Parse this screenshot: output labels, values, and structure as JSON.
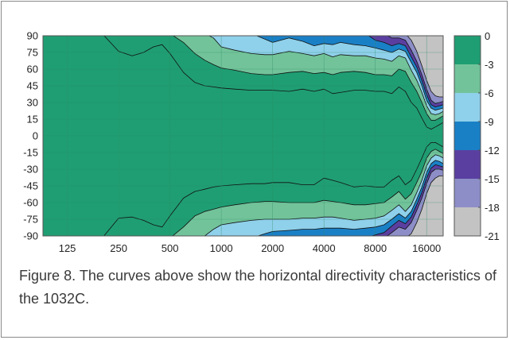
{
  "chart_data": {
    "type": "heatmap",
    "title": "",
    "xlabel": "",
    "ylabel": "",
    "x_scale": "log",
    "x_ticks": [
      "125",
      "250",
      "500",
      "1000",
      "2000",
      "4000",
      "8000",
      "16000"
    ],
    "xlim": [
      90,
      20000
    ],
    "y_ticks": [
      "90",
      "75",
      "60",
      "45",
      "30",
      "15",
      "0",
      "-15",
      "-30",
      "-45",
      "-60",
      "-75",
      "-90"
    ],
    "ylim": [
      -90,
      90
    ],
    "colorbar": {
      "ticks": [
        "0",
        "-3",
        "-6",
        "-9",
        "-12",
        "-15",
        "-18",
        "-21"
      ],
      "levels": [
        {
          "range": [
            -3,
            0
          ],
          "color": "#1f9e73"
        },
        {
          "range": [
            -6,
            -3
          ],
          "color": "#72c39a"
        },
        {
          "range": [
            -9,
            -6
          ],
          "color": "#8fd0ea"
        },
        {
          "range": [
            -12,
            -9
          ],
          "color": "#1a80c6"
        },
        {
          "range": [
            -15,
            -12
          ],
          "color": "#5b3fa0"
        },
        {
          "range": [
            -18,
            -15
          ],
          "color": "#8d8ec7"
        },
        {
          "range": [
            -21,
            -18
          ],
          "color": "#c3c3c3"
        }
      ]
    },
    "contours_upper_half": {
      "freq_hz": [
        90,
        100,
        125,
        160,
        200,
        250,
        300,
        350,
        400,
        450,
        500,
        600,
        700,
        800,
        900,
        1000,
        1200,
        1500,
        1800,
        2000,
        2500,
        3000,
        3500,
        4000,
        4500,
        5000,
        6000,
        7000,
        8000,
        9000,
        10000,
        11000,
        12000,
        13000,
        14000,
        15000,
        16000,
        17000,
        18000,
        19000,
        20000
      ],
      "levels_deg": [
        {
          "level": -3,
          "angle": [
            92,
            92,
            92,
            92,
            92,
            76,
            72,
            75,
            80,
            82,
            74,
            57,
            48,
            45,
            44,
            43,
            42,
            41,
            41,
            41,
            40,
            42,
            40,
            42,
            38,
            39,
            41,
            41,
            40,
            40,
            38,
            44,
            40,
            30,
            25,
            16,
            8,
            6,
            8,
            10,
            12
          ]
        },
        {
          "level": -6,
          "angle": [
            92,
            92,
            92,
            92,
            92,
            92,
            92,
            92,
            92,
            92,
            92,
            84,
            74,
            68,
            64,
            61,
            59,
            56,
            55,
            55,
            57,
            58,
            56,
            57,
            55,
            57,
            58,
            57,
            55,
            55,
            54,
            60,
            58,
            48,
            40,
            30,
            20,
            14,
            14,
            16,
            18
          ]
        },
        {
          "level": -9,
          "angle": [
            92,
            92,
            92,
            92,
            92,
            92,
            92,
            92,
            92,
            92,
            92,
            92,
            92,
            92,
            88,
            80,
            77,
            74,
            73,
            73,
            76,
            74,
            72,
            74,
            71,
            73,
            72,
            72,
            70,
            69,
            67,
            72,
            70,
            59,
            50,
            39,
            27,
            20,
            19,
            20,
            22
          ]
        },
        {
          "level": -12,
          "angle": [
            92,
            92,
            92,
            92,
            92,
            92,
            92,
            92,
            92,
            92,
            92,
            92,
            92,
            92,
            92,
            92,
            92,
            92,
            87,
            84,
            88,
            85,
            81,
            83,
            82,
            84,
            82,
            81,
            79,
            77,
            75,
            78,
            76,
            66,
            57,
            45,
            32,
            25,
            23,
            24,
            25
          ]
        },
        {
          "level": -15,
          "angle": [
            92,
            92,
            92,
            92,
            92,
            92,
            92,
            92,
            92,
            92,
            92,
            92,
            92,
            92,
            92,
            92,
            92,
            92,
            92,
            92,
            92,
            92,
            92,
            92,
            92,
            92,
            92,
            92,
            86,
            84,
            81,
            83,
            81,
            71,
            62,
            50,
            37,
            28,
            26,
            27,
            28
          ]
        },
        {
          "level": -18,
          "angle": [
            92,
            92,
            92,
            92,
            92,
            92,
            92,
            92,
            92,
            92,
            92,
            92,
            92,
            92,
            92,
            92,
            92,
            92,
            92,
            92,
            92,
            92,
            92,
            92,
            92,
            92,
            92,
            92,
            92,
            92,
            88,
            88,
            86,
            77,
            67,
            55,
            42,
            32,
            29,
            30,
            31
          ]
        },
        {
          "level": -21,
          "angle": [
            92,
            92,
            92,
            92,
            92,
            92,
            92,
            92,
            92,
            92,
            92,
            92,
            92,
            92,
            92,
            92,
            92,
            92,
            92,
            92,
            92,
            92,
            92,
            92,
            92,
            92,
            92,
            92,
            92,
            92,
            92,
            92,
            92,
            86,
            76,
            63,
            50,
            40,
            36,
            35,
            35
          ]
        }
      ]
    },
    "contours_lower_half": {
      "freq_hz": [
        90,
        100,
        125,
        160,
        200,
        250,
        300,
        350,
        400,
        450,
        500,
        600,
        700,
        800,
        900,
        1000,
        1200,
        1500,
        1800,
        2000,
        2500,
        3000,
        3500,
        4000,
        4500,
        5000,
        6000,
        7000,
        8000,
        9000,
        10000,
        11000,
        12000,
        13000,
        14000,
        15000,
        16000,
        17000,
        18000,
        19000,
        20000
      ],
      "levels_deg": [
        {
          "level": -3,
          "angle": [
            -92,
            -92,
            -92,
            -92,
            -92,
            -74,
            -73,
            -76,
            -80,
            -82,
            -72,
            -56,
            -50,
            -48,
            -46,
            -45,
            -44,
            -43,
            -43,
            -42,
            -42,
            -44,
            -44,
            -38,
            -40,
            -42,
            -46,
            -45,
            -46,
            -46,
            -40,
            -36,
            -44,
            -40,
            -30,
            -20,
            -10,
            -6,
            -6,
            -8,
            -10
          ]
        },
        {
          "level": -6,
          "angle": [
            -92,
            -92,
            -92,
            -92,
            -92,
            -92,
            -92,
            -92,
            -92,
            -92,
            -92,
            -82,
            -72,
            -68,
            -66,
            -64,
            -62,
            -60,
            -59,
            -59,
            -60,
            -60,
            -60,
            -58,
            -59,
            -60,
            -62,
            -62,
            -61,
            -60,
            -55,
            -50,
            -57,
            -52,
            -42,
            -32,
            -20,
            -14,
            -12,
            -14,
            -16
          ]
        },
        {
          "level": -9,
          "angle": [
            -92,
            -92,
            -92,
            -92,
            -92,
            -92,
            -92,
            -92,
            -92,
            -92,
            -92,
            -92,
            -92,
            -90,
            -84,
            -80,
            -78,
            -76,
            -75,
            -75,
            -75,
            -74,
            -74,
            -73,
            -73,
            -74,
            -76,
            -75,
            -74,
            -72,
            -67,
            -62,
            -68,
            -62,
            -51,
            -40,
            -27,
            -20,
            -17,
            -18,
            -20
          ]
        },
        {
          "level": -12,
          "angle": [
            -92,
            -92,
            -92,
            -92,
            -92,
            -92,
            -92,
            -92,
            -92,
            -92,
            -92,
            -92,
            -92,
            -92,
            -92,
            -92,
            -92,
            -92,
            -88,
            -86,
            -85,
            -84,
            -84,
            -83,
            -83,
            -83,
            -84,
            -83,
            -82,
            -80,
            -75,
            -70,
            -74,
            -68,
            -57,
            -46,
            -33,
            -25,
            -22,
            -23,
            -25
          ]
        },
        {
          "level": -15,
          "angle": [
            -92,
            -92,
            -92,
            -92,
            -92,
            -92,
            -92,
            -92,
            -92,
            -92,
            -92,
            -92,
            -92,
            -92,
            -92,
            -92,
            -92,
            -92,
            -92,
            -92,
            -92,
            -92,
            -92,
            -92,
            -92,
            -92,
            -92,
            -92,
            -89,
            -87,
            -81,
            -76,
            -79,
            -73,
            -62,
            -51,
            -38,
            -29,
            -26,
            -27,
            -28
          ]
        },
        {
          "level": -18,
          "angle": [
            -92,
            -92,
            -92,
            -92,
            -92,
            -92,
            -92,
            -92,
            -92,
            -92,
            -92,
            -92,
            -92,
            -92,
            -92,
            -92,
            -92,
            -92,
            -92,
            -92,
            -92,
            -92,
            -92,
            -92,
            -92,
            -92,
            -92,
            -92,
            -92,
            -92,
            -87,
            -82,
            -84,
            -78,
            -67,
            -56,
            -43,
            -33,
            -30,
            -30,
            -31
          ]
        },
        {
          "level": -21,
          "angle": [
            -92,
            -92,
            -92,
            -92,
            -92,
            -92,
            -92,
            -92,
            -92,
            -92,
            -92,
            -92,
            -92,
            -92,
            -92,
            -92,
            -92,
            -92,
            -92,
            -92,
            -92,
            -92,
            -92,
            -92,
            -92,
            -92,
            -92,
            -92,
            -92,
            -92,
            -92,
            -92,
            -92,
            -88,
            -78,
            -66,
            -52,
            -42,
            -38,
            -36,
            -36
          ]
        }
      ]
    }
  },
  "caption": "Figure 8. The curves above show the horizontal directivity characteristics of the 1032C."
}
